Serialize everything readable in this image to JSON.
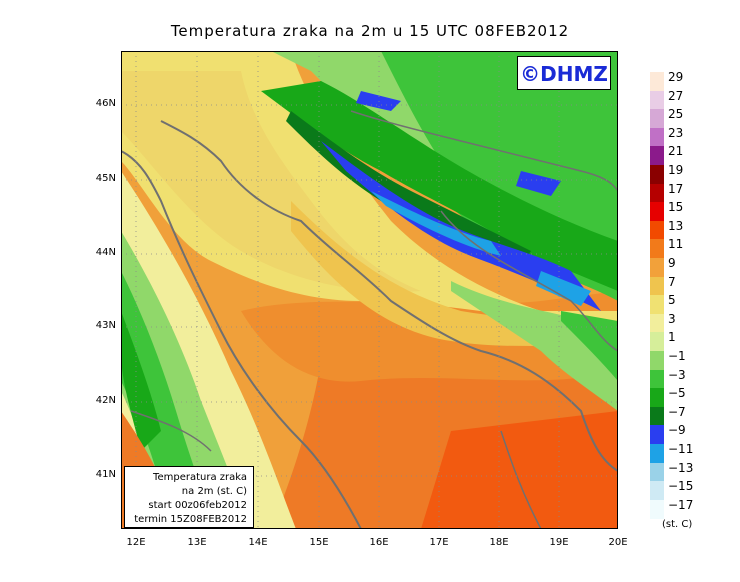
{
  "title": "Temperatura zraka na 2m u 15 UTC 08FEB2012",
  "brand": "©DHMZ",
  "info": {
    "line1": "Temperatura zraka",
    "line2": "na 2m (st. C)",
    "line3": "start 00z06feb2012",
    "line4": "termin 15Z08FEB2012"
  },
  "lat_labels": [
    "46N",
    "45N",
    "44N",
    "43N",
    "42N",
    "41N"
  ],
  "lon_labels": [
    "12E",
    "13E",
    "14E",
    "15E",
    "16E",
    "17E",
    "18E",
    "19E",
    "20E"
  ],
  "legend": {
    "labels": [
      "29",
      "27",
      "25",
      "23",
      "21",
      "19",
      "17",
      "15",
      "13",
      "11",
      "9",
      "7",
      "5",
      "3",
      "1",
      "−1",
      "−3",
      "−5",
      "−7",
      "−9",
      "−11",
      "−13",
      "−15",
      "−17"
    ],
    "colors": [
      "#fde9d8",
      "#e9cde6",
      "#d6a8d6",
      "#c070c6",
      "#8b1a8b",
      "#8a0000",
      "#b50000",
      "#e60000",
      "#f24a00",
      "#f27a1a",
      "#f2a13a",
      "#efc44e",
      "#f0e172",
      "#f2ee9c",
      "#d6ee9a",
      "#90d86a",
      "#3ec43a",
      "#18a818",
      "#0a7a1a",
      "#2a3ef0",
      "#1ea2e6",
      "#9ad2e8",
      "#cfeaf4",
      "#f0fbfd"
    ],
    "units": "(st. C)"
  }
}
